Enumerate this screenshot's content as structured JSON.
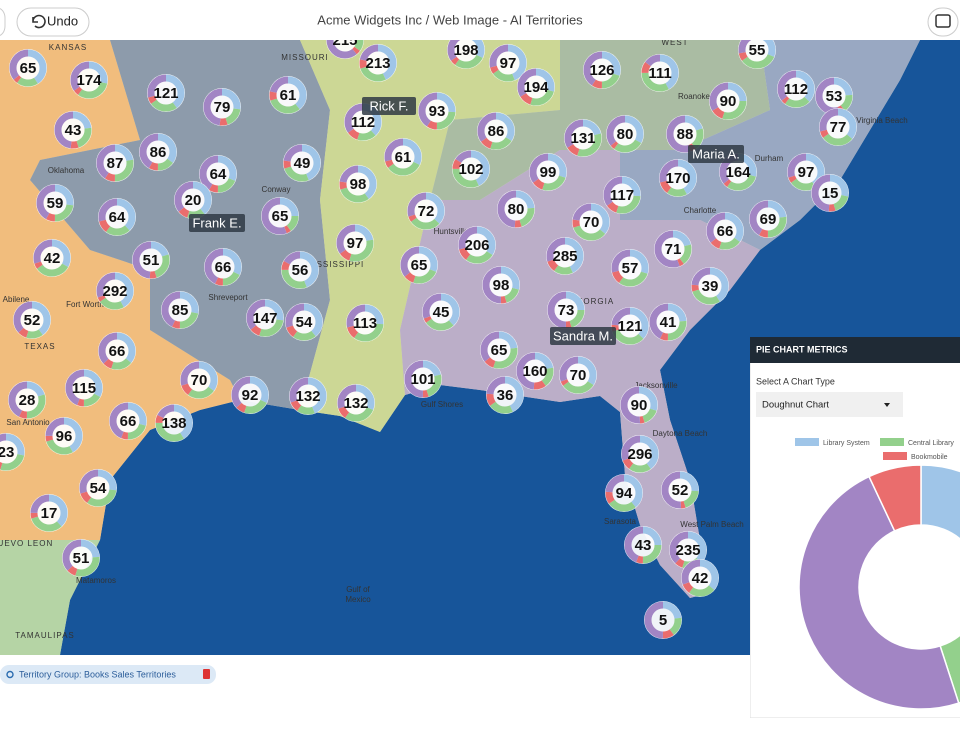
{
  "header": {
    "undo": "Undo",
    "title": "Acme Widgets Inc / Web Image - AI Territories"
  },
  "territory_labels": [
    "Rick F.",
    "Maria A.",
    "Frank E.",
    "Sandra M."
  ],
  "map_labels": [
    "KANSAS",
    "MISSOURI",
    "Oklahoma",
    "TEXAS",
    "Fort Worth",
    "Abilene",
    "San Antonio",
    "Shreveport",
    "Conway",
    "Huntsville",
    "MISSISSIPPI",
    "GEORGIA",
    "Jacksonville",
    "Gulf Shores",
    "Gulf of",
    "Mexico",
    "NUEVO LEON",
    "TAMAULIPAS",
    "Matamoros",
    "Roanoke",
    "Virginia Beach",
    "Durham",
    "Charlotte",
    "Daytona Beach",
    "Sarasota",
    "West Palm Beach",
    "WEST"
  ],
  "clusters": [
    215,
    198,
    97,
    55,
    213,
    126,
    111,
    194,
    65,
    174,
    121,
    79,
    61,
    93,
    112,
    90,
    112,
    53,
    77,
    43,
    86,
    87,
    86,
    131,
    80,
    88,
    61,
    49,
    64,
    102,
    99,
    170,
    164,
    97,
    15,
    98,
    59,
    20,
    117,
    64,
    65,
    72,
    80,
    70,
    69,
    66,
    97,
    206,
    71,
    42,
    51,
    66,
    56,
    65,
    285,
    57,
    292,
    98,
    39,
    85,
    52,
    147,
    54,
    113,
    45,
    73,
    121,
    41,
    66,
    65,
    70,
    160,
    70,
    101,
    115,
    28,
    92,
    132,
    132,
    36,
    90,
    96,
    66,
    138,
    23,
    296,
    54,
    94,
    52,
    17,
    43,
    235,
    51,
    42,
    5
  ],
  "footer": {
    "territory_group": "Territory Group: Books Sales Territories"
  },
  "panel": {
    "title": "PIE CHART METRICS",
    "select_label": "Select A Chart Type",
    "select_value": "Doughnut Chart",
    "donut": {
      "segments": [
        {
          "name": "Library System",
          "color": "#9fc5e8",
          "value": 25
        },
        {
          "name": "Central Library",
          "color": "#93d08c",
          "value": 20
        },
        {
          "color": "#a285c4",
          "value": 48
        },
        {
          "name": "Bookmobile",
          "color": "#ea6d6d",
          "value": 7
        }
      ]
    }
  }
}
